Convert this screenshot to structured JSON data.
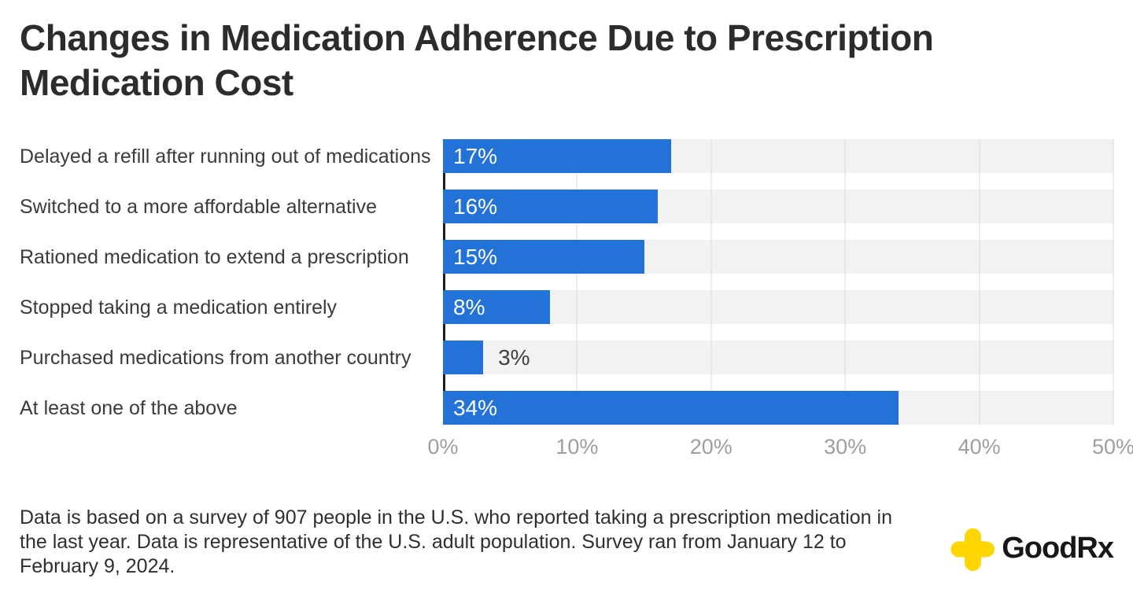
{
  "header": {
    "title": "Changes in Medication Adherence Due to Prescription Medication Cost"
  },
  "chart_data": {
    "type": "bar",
    "orientation": "horizontal",
    "title": "Changes in Medication Adherence Due to Prescription Medication Cost",
    "categories": [
      "Delayed a refill after running out of medications",
      "Switched to a more affordable alternative",
      "Rationed medication to extend a prescription",
      "Stopped taking a medication entirely",
      "Purchased medications from another country",
      "At least one of the above"
    ],
    "values": [
      17,
      16,
      15,
      8,
      3,
      34
    ],
    "value_labels": [
      "17%",
      "16%",
      "15%",
      "8%",
      "3%",
      "34%"
    ],
    "xlabel": "",
    "ylabel": "",
    "xlim": [
      0,
      50
    ],
    "x_ticks": [
      "0%",
      "10%",
      "20%",
      "30%",
      "40%",
      "50%"
    ],
    "grid": "vertical-gridlines-on",
    "legend": "none",
    "bar_color": "#2372d8",
    "track_color": "#f2f2f2",
    "gridline_color": "#d9d9d9",
    "axis_line_color": "#1d1d1d",
    "inside_label_color": "#ffffff",
    "outside_label_color": "#3f3f3f",
    "outside_label_threshold": 5
  },
  "footer": {
    "note": "Data is based on a survey of 907 people in the U.S. who reported taking a prescription medication in the last year. Data is representative of the U.S. adult population. Survey ran from January 12 to February 9, 2024."
  },
  "logo": {
    "brand": "GoodRx",
    "icon_color": "#ffd600",
    "text_color": "#17171a"
  }
}
